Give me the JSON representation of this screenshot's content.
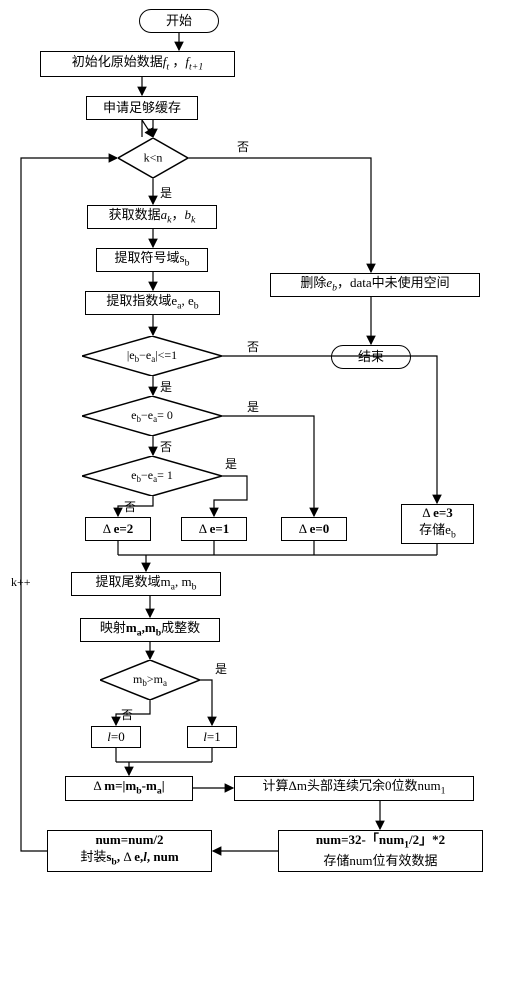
{
  "terminals": {
    "start": "开始",
    "end": "结束"
  },
  "processes": {
    "init": "初始化原始数据<i>f<sub>t</sub></i> ，<i>f<sub>t+1</sub></i>",
    "alloc": "申请足够缓存",
    "getdata": "获取数据<i>a<sub>k</sub></i>，<i>b<sub>k</sub></i>",
    "extract_sign": "提取符号域s<sub>b</sub>",
    "extract_exp": "提取指数域e<sub>a</sub>, e<sub>b</sub>",
    "de2": "Δ <b>e=2</b>",
    "de1": "Δ <b>e=1</b>",
    "de0": "Δ <b>e=0</b>",
    "de3": "Δ <b>e=3</b><br>存储e<sub>b</sub>",
    "extract_mant": "提取尾数域m<sub>a</sub>, m<sub>b</sub>",
    "map_int": "映射<b>m<sub>a</sub>,m<sub>b</sub></b>成整数",
    "l0": "<i>l</i>=0",
    "l1": "<i>l</i>=1",
    "dm": "Δ <b>m=|m<sub>b</sub>-m<sub>a</sub>|</b>",
    "calc_num1": "计算Δm头部连续冗余0位数num<sub>1</sub>",
    "num_store": "<b>num=32-「num<sub>1</sub>/2」*2</b><br>存储num位有效数据",
    "num_pack": "<b>num=num/2</b><br>封装<b>s<sub>b</sub>,</b> Δ <b>e,<i>l</i>, num</b>",
    "delete": "删除<i>e<sub>b</sub></i>，data中未使用空间"
  },
  "decisions": {
    "kn": "k&lt;n",
    "abs_diff": "|e<sub>b</sub>−e<sub>a</sub>|&lt;=1",
    "eq0": "e<sub>b</sub>−e<sub>a</sub>= 0",
    "eq1": "e<sub>b</sub>−e<sub>a</sub>= 1",
    "mb_gt": "m<sub>b</sub>&gt;m<sub>a</sub>"
  },
  "labels": {
    "yes": "是",
    "no": "否",
    "kpp": "k++"
  },
  "colors": {
    "stroke": "#000000",
    "bg": "#ffffff"
  }
}
